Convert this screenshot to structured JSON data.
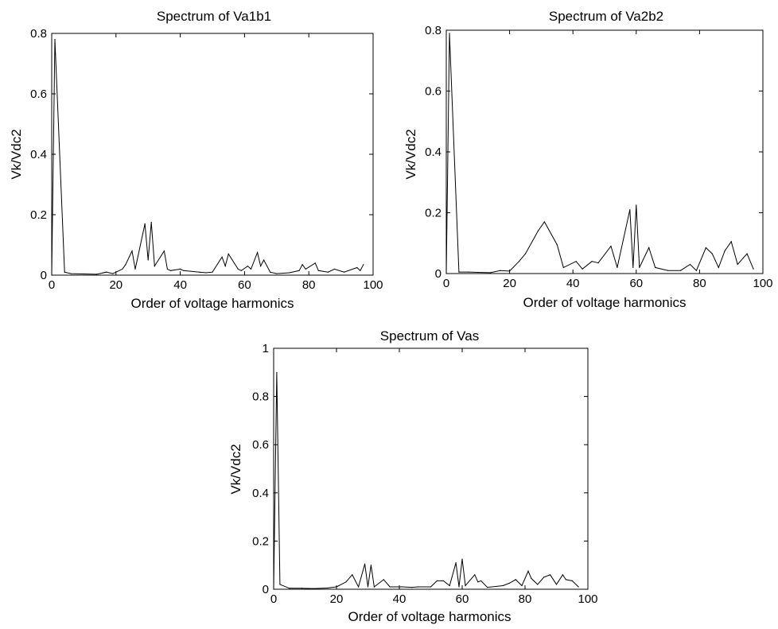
{
  "chart_data": [
    {
      "type": "line",
      "title": "Spectrum of Va1b1",
      "xlabel": "Order of voltage harmonics",
      "ylabel": "Vk/Vdc2",
      "xlim": [
        0,
        100
      ],
      "ylim": [
        0,
        0.8
      ],
      "xticks": [
        "0",
        "20",
        "40",
        "60",
        "80",
        "100"
      ],
      "yticks": [
        "0",
        "0.2",
        "0.4",
        "0.6",
        "0.8"
      ],
      "grid": false,
      "series": [
        {
          "x": [
            0,
            1,
            4,
            6,
            10,
            14,
            17,
            19,
            22,
            23,
            25,
            26,
            29,
            30,
            31,
            32,
            35,
            36,
            37,
            40,
            41,
            46,
            48,
            50,
            53,
            54,
            55,
            58,
            59,
            61,
            62,
            64,
            65,
            66,
            68,
            70,
            74,
            77,
            78,
            79,
            82,
            83,
            86,
            88,
            91,
            95,
            96,
            97
          ],
          "y": [
            0,
            0.78,
            0.01,
            0.005,
            0.004,
            0.003,
            0.01,
            0.005,
            0.02,
            0.035,
            0.08,
            0.02,
            0.17,
            0.05,
            0.175,
            0.03,
            0.08,
            0.02,
            0.015,
            0.02,
            0.015,
            0.01,
            0.008,
            0.01,
            0.06,
            0.03,
            0.07,
            0.02,
            0.015,
            0.03,
            0.02,
            0.075,
            0.03,
            0.05,
            0.01,
            0.005,
            0.008,
            0.015,
            0.035,
            0.02,
            0.04,
            0.015,
            0.01,
            0.02,
            0.01,
            0.025,
            0.015,
            0.035
          ]
        }
      ]
    },
    {
      "type": "line",
      "title": "Spectrum of Va2b2",
      "xlabel": "Order of voltage harmonics",
      "ylabel": "Vk/Vdc2",
      "xlim": [
        0,
        100
      ],
      "ylim": [
        0,
        0.8
      ],
      "xticks": [
        "0",
        "20",
        "40",
        "60",
        "80",
        "100"
      ],
      "yticks": [
        "0",
        "0.2",
        "0.4",
        "0.6",
        "0.8"
      ],
      "grid": false,
      "series": [
        {
          "x": [
            0,
            1,
            4,
            7,
            10,
            14,
            17,
            20,
            23,
            25,
            29,
            31,
            35,
            37,
            41,
            43,
            46,
            48,
            52,
            54,
            58,
            59,
            60,
            61,
            64,
            66,
            70,
            74,
            77,
            79,
            82,
            84,
            86,
            88,
            90,
            92,
            95,
            97
          ],
          "y": [
            0,
            0.79,
            0.005,
            0.005,
            0.004,
            0.003,
            0.01,
            0.008,
            0.04,
            0.065,
            0.14,
            0.17,
            0.095,
            0.02,
            0.04,
            0.015,
            0.04,
            0.035,
            0.09,
            0.02,
            0.21,
            0.02,
            0.225,
            0.02,
            0.085,
            0.02,
            0.01,
            0.01,
            0.03,
            0.01,
            0.085,
            0.065,
            0.02,
            0.075,
            0.105,
            0.03,
            0.065,
            0.015
          ]
        }
      ]
    },
    {
      "type": "line",
      "title": "Spectrum of Vas",
      "xlabel": "Order of voltage harmonics",
      "ylabel": "Vk/Vdc2",
      "xlim": [
        0,
        100
      ],
      "ylim": [
        0,
        1
      ],
      "xticks": [
        "0",
        "20",
        "40",
        "60",
        "80",
        "100"
      ],
      "yticks": [
        "0",
        "0.2",
        "0.4",
        "0.6",
        "0.8",
        "1"
      ],
      "grid": false,
      "series": [
        {
          "x": [
            0,
            1,
            2,
            5,
            9,
            13,
            17,
            20,
            23,
            25,
            27,
            29,
            30,
            31,
            32,
            35,
            37,
            41,
            44,
            46,
            50,
            52,
            54,
            56,
            58,
            59,
            60,
            61,
            64,
            65,
            66,
            68,
            73,
            75,
            77,
            79,
            81,
            82,
            84,
            86,
            88,
            90,
            92,
            93,
            95,
            97
          ],
          "y": [
            0,
            0.9,
            0.02,
            0.004,
            0.004,
            0.003,
            0.005,
            0.01,
            0.03,
            0.06,
            0.01,
            0.105,
            0.01,
            0.1,
            0.01,
            0.04,
            0.01,
            0.01,
            0.008,
            0.01,
            0.01,
            0.035,
            0.035,
            0.015,
            0.11,
            0.01,
            0.125,
            0.015,
            0.06,
            0.03,
            0.035,
            0.008,
            0.015,
            0.025,
            0.04,
            0.015,
            0.075,
            0.045,
            0.02,
            0.05,
            0.06,
            0.02,
            0.06,
            0.04,
            0.035,
            0.01
          ]
        }
      ]
    }
  ]
}
